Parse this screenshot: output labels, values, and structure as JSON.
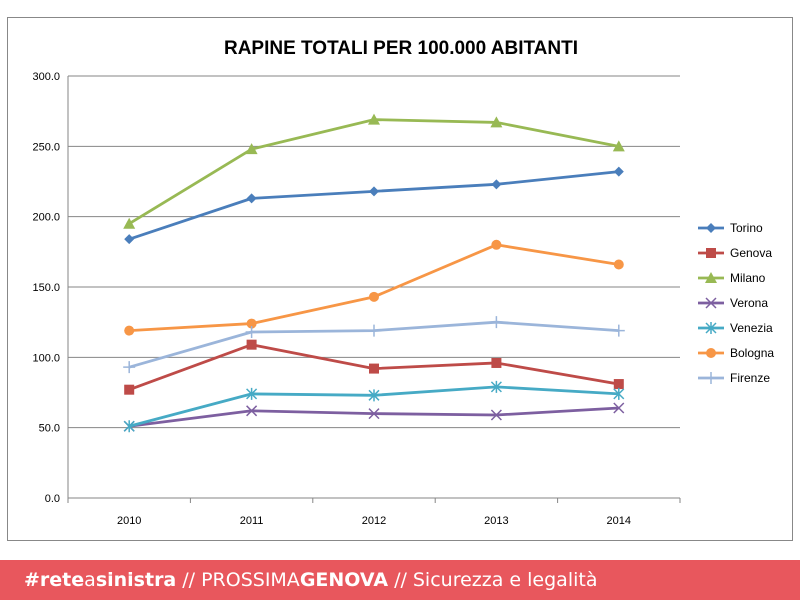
{
  "chart_data": {
    "type": "line",
    "title": "RAPINE TOTALI PER 100.000 ABITANTI",
    "xlabel": "",
    "ylabel": "",
    "categories": [
      "2010",
      "2011",
      "2012",
      "2013",
      "2014"
    ],
    "ylim": [
      0,
      300
    ],
    "yticks": [
      "0.0",
      "50.0",
      "100.0",
      "150.0",
      "200.0",
      "250.0",
      "300.0"
    ],
    "grid": true,
    "legend_position": "right",
    "series": [
      {
        "name": "Torino",
        "color": "#4a7ebb",
        "marker": "diamond",
        "values": [
          184,
          213,
          218,
          223,
          232
        ]
      },
      {
        "name": "Genova",
        "color": "#be4b48",
        "marker": "square",
        "values": [
          77,
          109,
          92,
          96,
          81
        ]
      },
      {
        "name": "Milano",
        "color": "#98b954",
        "marker": "triangle",
        "values": [
          195,
          248,
          269,
          267,
          250
        ]
      },
      {
        "name": "Verona",
        "color": "#7d5fa0",
        "marker": "x",
        "values": [
          51,
          62,
          60,
          59,
          64
        ]
      },
      {
        "name": "Venezia",
        "color": "#46aac5",
        "marker": "asterisk",
        "values": [
          51,
          74,
          73,
          79,
          74
        ]
      },
      {
        "name": "Bologna",
        "color": "#f79646",
        "marker": "circle",
        "values": [
          119,
          124,
          143,
          180,
          166
        ]
      },
      {
        "name": "Firenze",
        "color": "#9bb5da",
        "marker": "plus",
        "values": [
          93,
          118,
          119,
          125,
          119
        ]
      }
    ]
  },
  "footer": {
    "background": "#e8575d",
    "brand_part1": "#rete",
    "brand_part2": "a",
    "brand_part3": "sinistra",
    "sep1": "//",
    "project_part1": "PROSSIMA",
    "project_part2": "GENOVA",
    "sep2": "//",
    "topic": "Sicurezza e legalità"
  }
}
